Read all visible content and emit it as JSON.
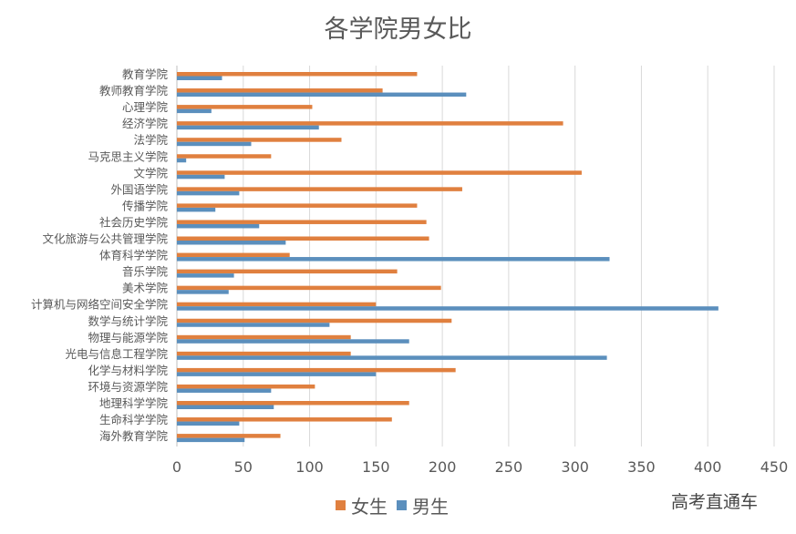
{
  "chart_data": {
    "type": "bar",
    "orientation": "horizontal",
    "title": "各学院男女比",
    "categories": [
      "教育学院",
      "教师教育学院",
      "心理学院",
      "经济学院",
      "法学院",
      "马克思主义学院",
      "文学院",
      "外国语学院",
      "传播学院",
      "社会历史学院",
      "文化旅游与公共管理学院",
      "体育科学学院",
      "音乐学院",
      "美术学院",
      "计算机与网络空间安全学院",
      "数学与统计学院",
      "物理与能源学院",
      "光电与信息工程学院",
      "化学与材料学院",
      "环境与资源学院",
      "地理科学学院",
      "生命科学学院",
      "海外教育学院"
    ],
    "series": [
      {
        "name": "女生",
        "color": "#e0803f",
        "values": [
          181,
          155,
          102,
          291,
          124,
          71,
          305,
          215,
          181,
          188,
          190,
          85,
          166,
          199,
          150,
          207,
          131,
          131,
          210,
          104,
          175,
          162,
          78
        ]
      },
      {
        "name": "男生",
        "color": "#5b8fbd",
        "values": [
          34,
          218,
          26,
          107,
          56,
          7,
          36,
          47,
          29,
          62,
          82,
          326,
          43,
          39,
          408,
          115,
          175,
          324,
          150,
          71,
          73,
          47,
          51
        ]
      }
    ],
    "xlim": [
      0,
      450
    ],
    "xticks": [
      "0",
      "50",
      "100",
      "150",
      "200",
      "250",
      "300",
      "350",
      "400",
      "450"
    ],
    "grid": true,
    "legend": "bottom"
  },
  "watermark": "高考直通车"
}
